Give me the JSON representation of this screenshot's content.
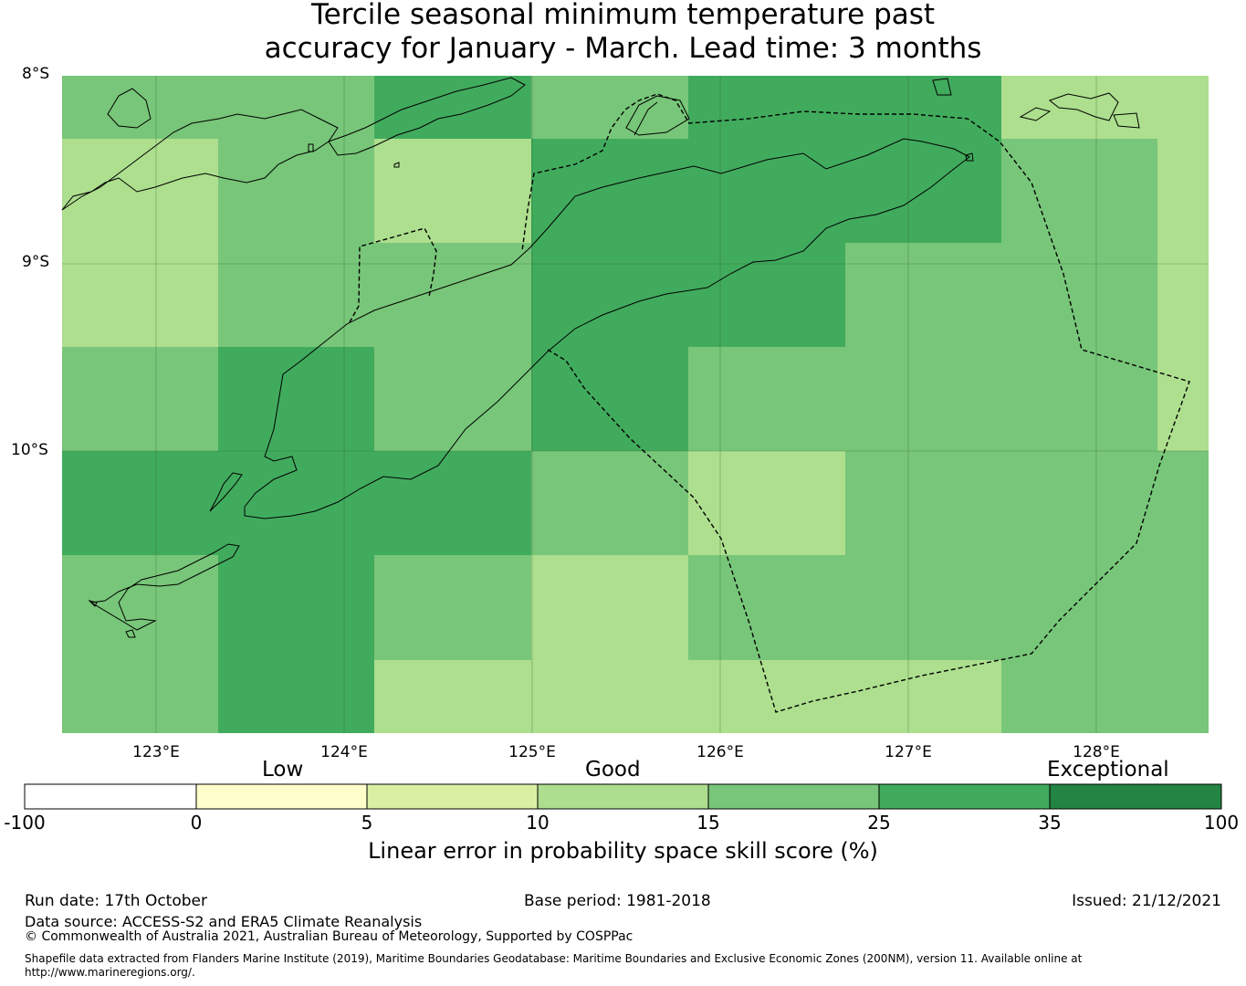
{
  "title": {
    "line1": "Tercile seasonal minimum temperature past",
    "line2": "accuracy for January - March. Lead time: 3 months"
  },
  "map": {
    "lat_labels": [
      "8°S",
      "9°S",
      "10°S"
    ],
    "lon_labels": [
      "123°E",
      "124°E",
      "125°E",
      "126°E",
      "127°E",
      "128°E"
    ],
    "legend_levels": {
      "c10_15": "#addf8e",
      "c15_25": "#78c679",
      "c25_35": "#41ab5d"
    }
  },
  "colorbar": {
    "categories": [
      "Low",
      "Good",
      "Exceptional"
    ],
    "ticks": [
      "-100",
      "0",
      "5",
      "10",
      "15",
      "25",
      "35",
      "100"
    ],
    "colors": [
      "#ffffff",
      "#ffffcc",
      "#d9f0a3",
      "#addd8e",
      "#78c679",
      "#41ab5d",
      "#238443"
    ],
    "title": "Linear error in probability space skill score (%)"
  },
  "footer": {
    "run_date": "Run date: 17th October",
    "base_period": "Base period: 1981-2018",
    "issued": "Issued: 21/12/2021",
    "data_source": "Data source: ACCESS-S2 and ERA5 Climate Reanalysis",
    "copyright": "© Commonwealth of Australia 2021, Australian Bureau of Meteorology, Supported by COSPPac",
    "shapefile_line1": "Shapefile data extracted from Flanders Marine Institute (2019), Maritime Boundaries Geodatabase: Maritime Boundaries and Exclusive Economic Zones (200NM), version 11. Available online at",
    "shapefile_line2": "http://www.marineregions.org/."
  }
}
